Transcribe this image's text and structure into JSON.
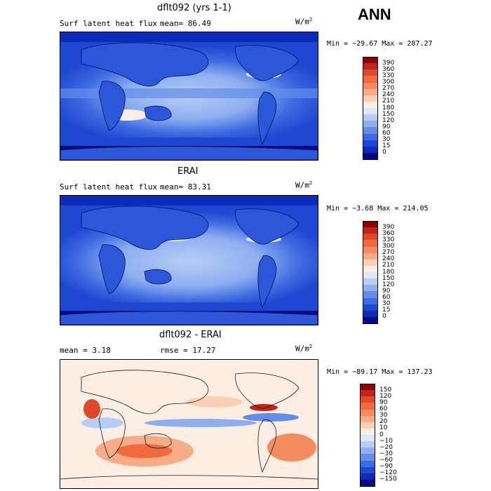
{
  "season": "ANN",
  "units_base": "W/m",
  "units_exp": "2",
  "panels": [
    {
      "title": "dflt092 (yrs 1-1)",
      "left_text": "Surf latent heat flux",
      "mid_text": "mean=  86.49",
      "minmax": "Min = −29.67 Max = 287.27"
    },
    {
      "title": "ERAI",
      "left_text": "Surf latent heat flux",
      "mid_text": "mean=  83.31",
      "minmax": "Min =  −3.68 Max = 214.05"
    },
    {
      "title": "dflt092 - ERAI",
      "left_text": "mean =   3.18",
      "mid_text": "rmse =  17.27",
      "minmax": "Min = −89.17 Max = 137.23"
    }
  ],
  "colorbar_abs": {
    "labels": [
      "390",
      "360",
      "330",
      "300",
      "270",
      "240",
      "210",
      "180",
      "150",
      "120",
      "90",
      "60",
      "30",
      "15",
      "0"
    ],
    "colors": [
      "#8b0000",
      "#c0251a",
      "#e0482a",
      "#f06a3e",
      "#f58c60",
      "#f7ac88",
      "#fad0b4",
      "#fdeee4",
      "#dde8fa",
      "#b7cdf5",
      "#8eaef0",
      "#648de9",
      "#3c6ae0",
      "#1f48d2",
      "#0d2ab8",
      "#000c84"
    ]
  },
  "colorbar_diff": {
    "labels": [
      "150",
      "120",
      "90",
      "60",
      "30",
      "20",
      "10",
      "0",
      "−10",
      "−20",
      "−30",
      "−60",
      "−90",
      "−120",
      "−150"
    ],
    "colors": [
      "#8b0000",
      "#c0251a",
      "#e0482a",
      "#f06a3e",
      "#f58c60",
      "#f7ac88",
      "#fad0b4",
      "#fdeee4",
      "#dde8fa",
      "#b7cdf5",
      "#8eaef0",
      "#648de9",
      "#3c6ae0",
      "#1f48d2",
      "#0d2ab8",
      "#000c84"
    ]
  },
  "chart_data": [
    {
      "type": "heatmap",
      "title": "dflt092 (yrs 1-1)",
      "variable": "Surf latent heat flux",
      "units": "W/m2",
      "mean": 86.49,
      "min": -29.67,
      "max": 287.27,
      "contour_levels": [
        0,
        15,
        30,
        60,
        90,
        120,
        150,
        180,
        210,
        240,
        270,
        300,
        330,
        360,
        390
      ]
    },
    {
      "type": "heatmap",
      "title": "ERAI",
      "variable": "Surf latent heat flux",
      "units": "W/m2",
      "mean": 83.31,
      "min": -3.68,
      "max": 214.05,
      "contour_levels": [
        0,
        15,
        30,
        60,
        90,
        120,
        150,
        180,
        210,
        240,
        270,
        300,
        330,
        360,
        390
      ]
    },
    {
      "type": "heatmap",
      "title": "dflt092 - ERAI",
      "units": "W/m2",
      "mean": 3.18,
      "rmse": 17.27,
      "min": -89.17,
      "max": 137.23,
      "contour_levels": [
        -150,
        -120,
        -90,
        -60,
        -30,
        -20,
        -10,
        0,
        10,
        20,
        30,
        60,
        90,
        120,
        150
      ]
    }
  ]
}
